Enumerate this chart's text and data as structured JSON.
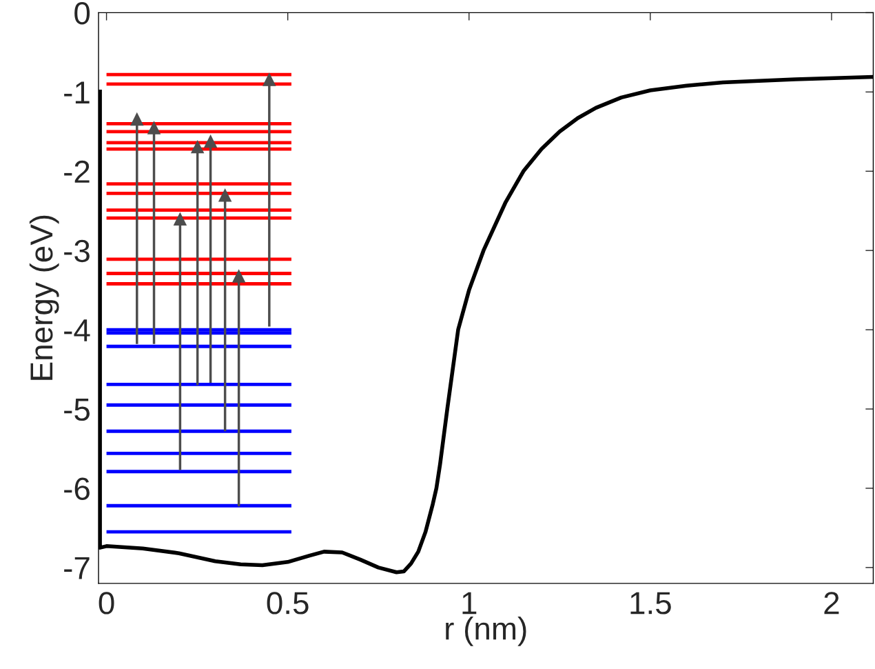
{
  "chart_data": {
    "type": "line",
    "xlabel": "r (nm)",
    "ylabel": "Energy (eV)",
    "xlim": [
      -0.022,
      2.115
    ],
    "ylim": [
      -7.2,
      0
    ],
    "xticks": [
      0,
      0.5,
      1,
      1.5,
      2
    ],
    "yticks": [
      0,
      -1,
      -2,
      -3,
      -4,
      -5,
      -6,
      -7
    ],
    "grid": false,
    "series": [
      {
        "color": "#000000",
        "x": [
          -0.018,
          -0.018,
          0.0,
          0.1,
          0.2,
          0.3,
          0.37,
          0.43,
          0.5,
          0.56,
          0.6,
          0.65,
          0.7,
          0.75,
          0.8,
          0.82,
          0.84,
          0.86,
          0.88,
          0.9,
          0.91,
          0.92,
          0.94,
          0.97,
          1.0,
          1.04,
          1.1,
          1.15,
          1.2,
          1.25,
          1.3,
          1.35,
          1.42,
          1.5,
          1.6,
          1.7,
          1.9,
          2.115
        ],
        "values": [
          -0.97,
          -6.75,
          -6.73,
          -6.76,
          -6.82,
          -6.92,
          -6.96,
          -6.97,
          -6.93,
          -6.85,
          -6.8,
          -6.81,
          -6.9,
          -7.0,
          -7.06,
          -7.05,
          -6.95,
          -6.8,
          -6.55,
          -6.2,
          -6.0,
          -5.7,
          -5.0,
          -4.0,
          -3.5,
          -3.0,
          -2.4,
          -2.0,
          -1.72,
          -1.5,
          -1.33,
          -1.2,
          -1.07,
          -0.98,
          -0.92,
          -0.88,
          -0.84,
          -0.81
        ]
      },
      {
        "color": "#ff0000",
        "x": [
          0,
          0.51
        ],
        "values": [
          -0.78,
          -0.78
        ]
      },
      {
        "color": "#ff0000",
        "x": [
          0,
          0.51
        ],
        "values": [
          -0.9,
          -0.9
        ]
      },
      {
        "color": "#ff0000",
        "x": [
          0,
          0.51
        ],
        "values": [
          -1.4,
          -1.4
        ]
      },
      {
        "color": "#ff0000",
        "x": [
          0,
          0.51
        ],
        "values": [
          -1.5,
          -1.5
        ]
      },
      {
        "color": "#ff0000",
        "x": [
          0,
          0.51
        ],
        "values": [
          -1.64,
          -1.64
        ]
      },
      {
        "color": "#ff0000",
        "x": [
          0,
          0.51
        ],
        "values": [
          -1.72,
          -1.72
        ]
      },
      {
        "color": "#ff0000",
        "x": [
          0,
          0.51
        ],
        "values": [
          -2.16,
          -2.16
        ]
      },
      {
        "color": "#ff0000",
        "x": [
          0,
          0.51
        ],
        "values": [
          -2.28,
          -2.28
        ]
      },
      {
        "color": "#ff0000",
        "x": [
          0,
          0.51
        ],
        "values": [
          -2.49,
          -2.49
        ]
      },
      {
        "color": "#ff0000",
        "x": [
          0,
          0.51
        ],
        "values": [
          -2.59,
          -2.59
        ]
      },
      {
        "color": "#ff0000",
        "x": [
          0,
          0.51
        ],
        "values": [
          -3.11,
          -3.11
        ]
      },
      {
        "color": "#ff0000",
        "x": [
          0,
          0.51
        ],
        "values": [
          -3.29,
          -3.29
        ]
      },
      {
        "color": "#ff0000",
        "x": [
          0,
          0.51
        ],
        "values": [
          -3.42,
          -3.42
        ]
      },
      {
        "color": "#0000ff",
        "x": [
          0,
          0.51
        ],
        "values": [
          -4.0,
          -4.0
        ]
      },
      {
        "color": "#0000ff",
        "x": [
          0,
          0.51
        ],
        "values": [
          -4.04,
          -4.04
        ]
      },
      {
        "color": "#0000ff",
        "x": [
          0,
          0.51
        ],
        "values": [
          -4.21,
          -4.21
        ]
      },
      {
        "color": "#0000ff",
        "x": [
          0,
          0.51
        ],
        "values": [
          -4.69,
          -4.69
        ]
      },
      {
        "color": "#0000ff",
        "x": [
          0,
          0.51
        ],
        "values": [
          -4.95,
          -4.95
        ]
      },
      {
        "color": "#0000ff",
        "x": [
          0,
          0.51
        ],
        "values": [
          -5.28,
          -5.28
        ]
      },
      {
        "color": "#0000ff",
        "x": [
          0,
          0.51
        ],
        "values": [
          -5.56,
          -5.56
        ]
      },
      {
        "color": "#0000ff",
        "x": [
          0,
          0.51
        ],
        "values": [
          -5.79,
          -5.79
        ]
      },
      {
        "color": "#0000ff",
        "x": [
          0,
          0.51
        ],
        "values": [
          -6.22,
          -6.22
        ]
      },
      {
        "color": "#0000ff",
        "x": [
          0,
          0.51
        ],
        "values": [
          -6.55,
          -6.55
        ]
      },
      {
        "color": "#4d4d4d",
        "marker": "triangle",
        "x": [
          0.084,
          0.084
        ],
        "values": [
          -4.18,
          -1.34
        ]
      },
      {
        "color": "#4d4d4d",
        "marker": "triangle",
        "x": [
          0.131,
          0.131
        ],
        "values": [
          -4.18,
          -1.45
        ]
      },
      {
        "color": "#4d4d4d",
        "marker": "triangle",
        "x": [
          0.203,
          0.203
        ],
        "values": [
          -5.77,
          -2.6
        ]
      },
      {
        "color": "#4d4d4d",
        "marker": "triangle",
        "x": [
          0.251,
          0.251
        ],
        "values": [
          -4.7,
          -1.69
        ]
      },
      {
        "color": "#4d4d4d",
        "marker": "triangle",
        "x": [
          0.287,
          0.287
        ],
        "values": [
          -4.67,
          -1.62
        ]
      },
      {
        "color": "#4d4d4d",
        "marker": "triangle",
        "x": [
          0.327,
          0.327
        ],
        "values": [
          -5.28,
          -2.3
        ]
      },
      {
        "color": "#4d4d4d",
        "marker": "triangle",
        "x": [
          0.365,
          0.365
        ],
        "values": [
          -6.23,
          -3.32
        ]
      },
      {
        "color": "#4d4d4d",
        "marker": "triangle",
        "x": [
          0.449,
          0.449
        ],
        "values": [
          -3.96,
          -0.84
        ]
      }
    ]
  }
}
